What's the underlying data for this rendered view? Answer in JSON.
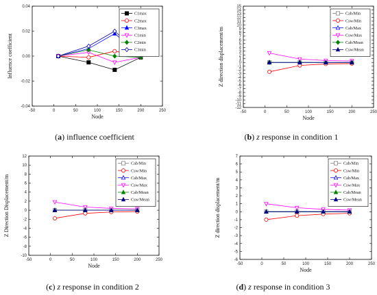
{
  "captions": [
    {
      "letter": "a",
      "text": " influence coefficient",
      "em": "",
      "rest": ""
    },
    {
      "letter": "b",
      "text": " ",
      "em": "z",
      "rest": " response in condition 1"
    },
    {
      "letter": "c",
      "text": " ",
      "em": "z",
      "rest": " response in condition 2"
    },
    {
      "letter": "d",
      "text": " ",
      "em": "z",
      "rest": " response in condition 3"
    }
  ],
  "chart_data": [
    {
      "type": "line",
      "panel": "a",
      "xlabel": "Node",
      "ylabel": "Influence coefficient",
      "xlim": [
        -50,
        250
      ],
      "ylim": [
        -0.04,
        0.04
      ],
      "xticks": [
        -50,
        0,
        50,
        100,
        150,
        200,
        250
      ],
      "yticks": [
        -0.04,
        -0.02,
        0.0,
        0.02,
        0.04
      ],
      "ytick_labels": [
        "-0.04",
        "-0.02",
        "0.00",
        "0.02",
        "0.04"
      ],
      "legend_position": "top-right",
      "x": [
        10,
        80,
        140,
        200
      ],
      "series": [
        {
          "name": "C1max",
          "values": [
            0,
            -0.005,
            -0.011,
            -0.001
          ],
          "color": "#000000",
          "marker": "square-filled"
        },
        {
          "name": "C2max",
          "values": [
            0,
            -0.001,
            0.004,
            0.0
          ],
          "color": "#ff0000",
          "marker": "circle-open"
        },
        {
          "name": "C3max",
          "values": [
            0,
            0.006,
            0.018,
            0.001
          ],
          "color": "#0000ff",
          "marker": "triangle-filled"
        },
        {
          "name": "C1min",
          "values": [
            0,
            0.003,
            -0.005,
            -0.001
          ],
          "color": "#ff00ff",
          "marker": "triangle-down-open"
        },
        {
          "name": "C2min",
          "values": [
            0,
            0.005,
            0.0,
            -0.001
          ],
          "color": "#008000",
          "marker": "diamond-filled"
        },
        {
          "name": "C3min",
          "values": [
            0,
            0.008,
            0.02,
            0.001
          ],
          "color": "#0000aa",
          "marker": "diamond-open"
        }
      ]
    },
    {
      "type": "line",
      "panel": "b",
      "xlabel": "Node",
      "ylabel": "Z direction displacement/m",
      "xlim": [
        -50,
        250
      ],
      "ylim": [
        -12,
        15
      ],
      "xticks": [
        -50,
        0,
        50,
        100,
        150,
        200,
        250
      ],
      "yticks": [
        -12,
        -11,
        -10,
        -9,
        -8,
        -7,
        -6,
        -5,
        -4,
        -3,
        -2,
        -1,
        0,
        1,
        2,
        3,
        4,
        5,
        6,
        7,
        8,
        9,
        10,
        11,
        12,
        13,
        14,
        15
      ],
      "legend_position": "top-right",
      "x": [
        10,
        80,
        140,
        200
      ],
      "series": [
        {
          "name": "Cab/Min",
          "values": [
            0,
            0,
            0,
            0
          ],
          "color": "#808080",
          "marker": "square-open"
        },
        {
          "name": "Csw/Min",
          "values": [
            -2.5,
            -0.8,
            -0.4,
            -0.3
          ],
          "color": "#ff0000",
          "marker": "circle-open"
        },
        {
          "name": "Cab/Max",
          "values": [
            0,
            0,
            0,
            0
          ],
          "color": "#0000ff",
          "marker": "triangle-open"
        },
        {
          "name": "Csw/Max",
          "values": [
            2.5,
            0.9,
            0.5,
            0.4
          ],
          "color": "#ff00ff",
          "marker": "triangle-down-open"
        },
        {
          "name": "Cab/Mean",
          "values": [
            0,
            0,
            0,
            0
          ],
          "color": "#008000",
          "marker": "diamond-filled"
        },
        {
          "name": "Csw/Mean",
          "values": [
            0,
            0,
            0,
            0
          ],
          "color": "#000080",
          "marker": "triangle-filled"
        }
      ]
    },
    {
      "type": "line",
      "panel": "c",
      "xlabel": "Node",
      "ylabel": "Z Direction  Displacement/m",
      "xlim": [
        -50,
        250
      ],
      "ylim": [
        -10,
        12
      ],
      "xticks": [
        -50,
        0,
        50,
        100,
        150,
        200,
        250
      ],
      "yticks": [
        -10,
        -8,
        -6,
        -4,
        -2,
        0,
        2,
        4,
        6,
        8,
        10,
        12
      ],
      "legend_position": "top-right",
      "x": [
        10,
        80,
        140,
        200
      ],
      "series": [
        {
          "name": "Cab/Min",
          "values": [
            0,
            0,
            0,
            0
          ],
          "color": "#808080",
          "marker": "square-open"
        },
        {
          "name": "Csw/Min",
          "values": [
            -1.8,
            -0.7,
            -0.4,
            -0.3
          ],
          "color": "#ff0000",
          "marker": "circle-open"
        },
        {
          "name": "Cab/Max",
          "values": [
            0,
            0,
            0,
            0
          ],
          "color": "#0000ff",
          "marker": "triangle-open"
        },
        {
          "name": "Csw/Max",
          "values": [
            1.8,
            0.7,
            0.4,
            0.3
          ],
          "color": "#ff00ff",
          "marker": "triangle-down-open"
        },
        {
          "name": "Cab/Mean",
          "values": [
            0,
            0,
            0,
            0
          ],
          "color": "#008000",
          "marker": "triangle-filled"
        },
        {
          "name": "Csw/Mean",
          "values": [
            0,
            0,
            0,
            0
          ],
          "color": "#000080",
          "marker": "triangle-filled"
        }
      ]
    },
    {
      "type": "line",
      "panel": "d",
      "xlabel": "Node",
      "ylabel": "Z direction displacement/m",
      "xlim": [
        -50,
        250
      ],
      "ylim": [
        -6,
        7
      ],
      "xticks": [
        -50,
        0,
        50,
        100,
        150,
        200,
        250
      ],
      "yticks": [
        -6,
        -5,
        -4,
        -3,
        -2,
        -1,
        0,
        1,
        2,
        3,
        4,
        5,
        6,
        7
      ],
      "legend_position": "top-right",
      "x": [
        10,
        80,
        140,
        200
      ],
      "series": [
        {
          "name": "Cab/Min",
          "values": [
            0,
            0,
            0,
            0
          ],
          "color": "#808080",
          "marker": "square-open"
        },
        {
          "name": "Csw/Min",
          "values": [
            -1.0,
            -0.5,
            -0.3,
            -0.2
          ],
          "color": "#ff0000",
          "marker": "circle-open"
        },
        {
          "name": "Cab/Max",
          "values": [
            0,
            0,
            0,
            0
          ],
          "color": "#0000ff",
          "marker": "triangle-open"
        },
        {
          "name": "Csw/Max",
          "values": [
            1.0,
            0.5,
            0.3,
            0.2
          ],
          "color": "#ff00ff",
          "marker": "triangle-down-open"
        },
        {
          "name": "Cab/Mean",
          "values": [
            0,
            0,
            0,
            0
          ],
          "color": "#008000",
          "marker": "triangle-filled"
        },
        {
          "name": "Csw/Mean",
          "values": [
            0,
            0,
            0,
            0
          ],
          "color": "#000080",
          "marker": "triangle-filled"
        }
      ]
    }
  ]
}
